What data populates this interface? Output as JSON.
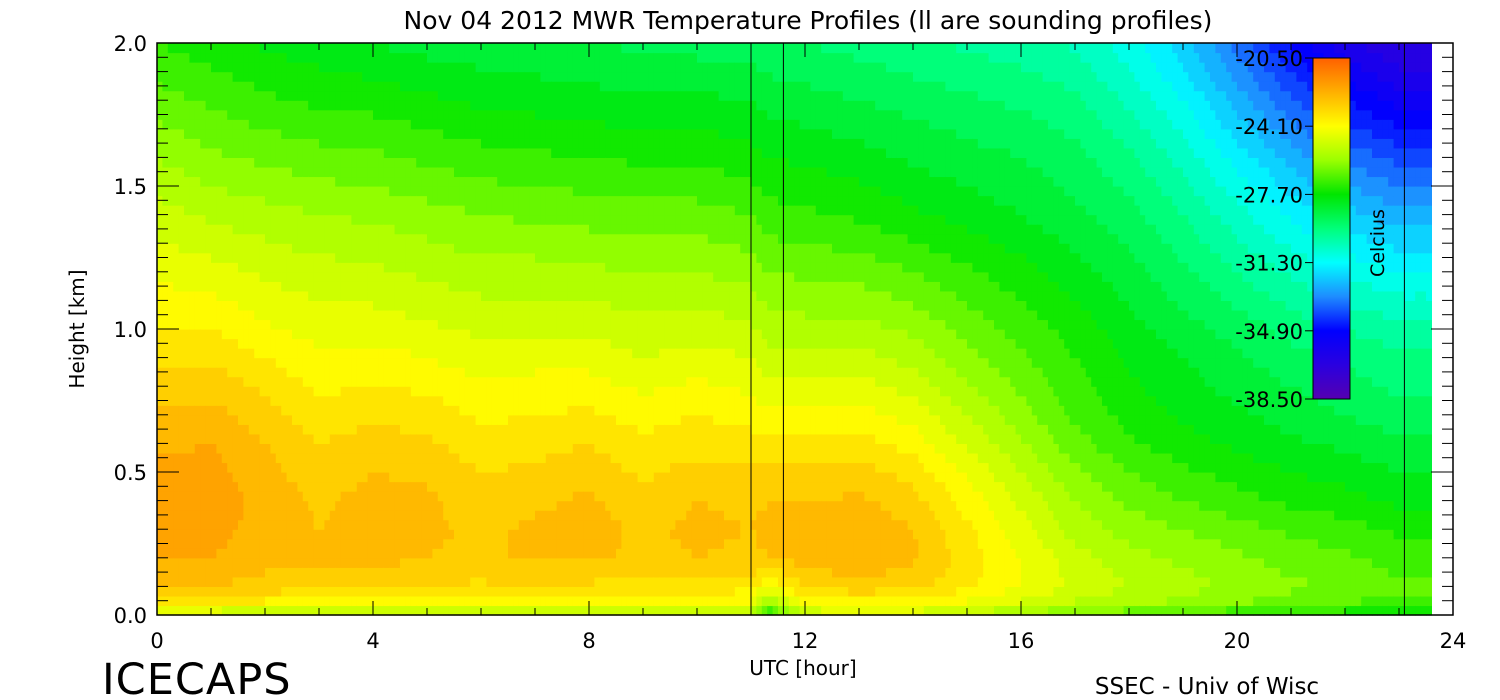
{
  "chart_data": {
    "type": "heatmap",
    "title": "Nov 04 2012 MWR Temperature Profiles (ll are sounding profiles)",
    "xlabel": "UTC [hour]",
    "ylabel": "Height [km]",
    "xlim": [
      0,
      24
    ],
    "ylim": [
      0.0,
      2.0
    ],
    "x_ticks": [
      0,
      4,
      8,
      12,
      16,
      20,
      24
    ],
    "y_ticks": [
      0.0,
      0.5,
      1.0,
      1.5,
      2.0
    ],
    "x_tick_labels": [
      "0",
      "4",
      "8",
      "12",
      "16",
      "20",
      "24"
    ],
    "y_tick_labels": [
      "0.0",
      "0.5",
      "1.0",
      "1.5",
      "2.0"
    ],
    "colorbar": {
      "label": "Celcius",
      "ticks": [
        -20.5,
        -24.1,
        -27.7,
        -31.3,
        -34.9,
        -38.5
      ],
      "tick_labels": [
        "-20.50",
        "-24.10",
        "-27.70",
        "-31.30",
        "-34.90",
        "-38.50"
      ],
      "range": [
        -38.5,
        -20.5
      ],
      "placement": "inside top-right"
    },
    "sounding_profile_hours": [
      11.0,
      11.6
    ],
    "data_end_hour": 23.1,
    "heights_km": [
      0.0,
      0.05,
      0.1,
      0.2,
      0.3,
      0.4,
      0.5,
      0.6,
      0.7,
      0.8,
      0.9,
      1.0,
      1.2,
      1.4,
      1.6,
      1.8,
      2.0
    ],
    "times_hour": [
      0,
      1,
      2,
      3,
      4,
      5,
      6,
      7,
      8,
      9,
      10,
      11,
      11.3,
      12,
      13,
      14,
      15,
      16,
      17,
      18,
      19,
      20,
      21,
      22,
      23,
      23.6
    ],
    "temperature_c": [
      [
        -25.0,
        -25.0,
        -25.2,
        -25.2,
        -25.1,
        -25.1,
        -25.3,
        -25.2,
        -25.3,
        -25.3,
        -25.3,
        -25.4,
        -27.3,
        -25.0,
        -24.8,
        -24.8,
        -25.2,
        -25.6,
        -26.1,
        -26.4,
        -26.6,
        -26.9,
        -27.1,
        -27.3,
        -27.6,
        -27.6
      ],
      [
        -23.3,
        -23.4,
        -23.5,
        -23.6,
        -23.6,
        -23.7,
        -23.8,
        -23.7,
        -23.8,
        -23.9,
        -23.9,
        -24.0,
        -25.6,
        -23.7,
        -23.5,
        -23.6,
        -24.0,
        -24.5,
        -25.0,
        -25.3,
        -25.6,
        -25.9,
        -26.2,
        -26.4,
        -26.7,
        -26.7
      ],
      [
        -22.4,
        -22.5,
        -22.7,
        -22.8,
        -22.9,
        -23.0,
        -23.1,
        -23.0,
        -23.1,
        -23.2,
        -23.2,
        -23.3,
        -24.0,
        -22.9,
        -22.7,
        -22.8,
        -23.4,
        -24.0,
        -24.6,
        -25.0,
        -25.3,
        -25.6,
        -25.9,
        -26.1,
        -26.4,
        -26.4
      ],
      [
        -22.0,
        -22.0,
        -22.3,
        -22.4,
        -22.3,
        -22.5,
        -22.6,
        -22.4,
        -22.4,
        -22.6,
        -22.5,
        -22.6,
        -22.5,
        -22.3,
        -22.1,
        -22.4,
        -23.2,
        -24.0,
        -24.8,
        -25.3,
        -25.6,
        -25.9,
        -26.2,
        -26.4,
        -26.7,
        -26.7
      ],
      [
        -21.9,
        -21.8,
        -22.2,
        -22.5,
        -22.2,
        -22.4,
        -22.6,
        -22.4,
        -22.3,
        -22.6,
        -22.4,
        -22.5,
        -22.4,
        -22.3,
        -22.1,
        -22.5,
        -23.4,
        -24.3,
        -25.2,
        -25.7,
        -26.0,
        -26.3,
        -26.6,
        -26.8,
        -27.1,
        -27.1
      ],
      [
        -21.9,
        -21.7,
        -22.2,
        -22.6,
        -22.3,
        -22.4,
        -22.8,
        -22.6,
        -22.4,
        -22.8,
        -22.5,
        -22.6,
        -22.5,
        -22.5,
        -22.4,
        -22.8,
        -23.7,
        -24.6,
        -25.5,
        -26.1,
        -26.5,
        -26.8,
        -27.1,
        -27.3,
        -27.6,
        -27.6
      ],
      [
        -21.9,
        -21.8,
        -22.3,
        -22.8,
        -22.5,
        -22.6,
        -23.0,
        -22.9,
        -22.7,
        -23.1,
        -22.8,
        -22.9,
        -22.9,
        -22.9,
        -22.8,
        -23.2,
        -24.1,
        -25.0,
        -25.9,
        -26.5,
        -26.9,
        -27.2,
        -27.5,
        -27.7,
        -28.0,
        -28.0
      ],
      [
        -22.1,
        -22.0,
        -22.5,
        -23.0,
        -22.8,
        -22.9,
        -23.3,
        -23.2,
        -23.0,
        -23.4,
        -23.2,
        -23.3,
        -23.4,
        -23.4,
        -23.3,
        -23.7,
        -24.6,
        -25.4,
        -26.3,
        -26.9,
        -27.3,
        -27.6,
        -27.9,
        -28.1,
        -28.4,
        -28.4
      ],
      [
        -22.4,
        -22.3,
        -22.8,
        -23.3,
        -23.1,
        -23.2,
        -23.6,
        -23.5,
        -23.4,
        -23.7,
        -23.5,
        -23.7,
        -23.9,
        -23.9,
        -23.8,
        -24.2,
        -25.0,
        -25.8,
        -26.6,
        -27.2,
        -27.6,
        -27.9,
        -28.2,
        -28.5,
        -28.8,
        -28.8
      ],
      [
        -22.7,
        -22.7,
        -23.1,
        -23.6,
        -23.5,
        -23.6,
        -23.9,
        -23.8,
        -23.8,
        -24.1,
        -23.9,
        -24.1,
        -24.4,
        -24.4,
        -24.3,
        -24.7,
        -25.4,
        -26.1,
        -26.8,
        -27.4,
        -27.8,
        -28.2,
        -28.5,
        -28.8,
        -29.1,
        -29.1
      ],
      [
        -23.1,
        -23.1,
        -23.5,
        -23.9,
        -23.8,
        -24.0,
        -24.3,
        -24.2,
        -24.2,
        -24.5,
        -24.3,
        -24.5,
        -24.8,
        -24.9,
        -24.8,
        -25.2,
        -25.8,
        -26.4,
        -27.0,
        -27.6,
        -28.0,
        -28.4,
        -28.8,
        -29.1,
        -29.4,
        -29.4
      ],
      [
        -23.5,
        -23.5,
        -23.9,
        -24.2,
        -24.2,
        -24.4,
        -24.6,
        -24.6,
        -24.6,
        -24.8,
        -24.7,
        -24.9,
        -25.2,
        -25.3,
        -25.3,
        -25.6,
        -26.2,
        -26.7,
        -27.2,
        -27.8,
        -28.3,
        -28.7,
        -29.2,
        -29.5,
        -29.8,
        -29.8
      ],
      [
        -24.1,
        -24.3,
        -24.6,
        -24.8,
        -24.9,
        -25.1,
        -25.3,
        -25.3,
        -25.4,
        -25.5,
        -25.5,
        -25.7,
        -26.0,
        -26.1,
        -26.2,
        -26.5,
        -26.9,
        -27.3,
        -27.8,
        -28.3,
        -28.9,
        -29.5,
        -30.1,
        -30.6,
        -31.0,
        -31.0
      ],
      [
        -24.8,
        -25.1,
        -25.3,
        -25.5,
        -25.6,
        -25.8,
        -26.0,
        -26.1,
        -26.2,
        -26.3,
        -26.3,
        -26.5,
        -26.8,
        -26.9,
        -27.1,
        -27.4,
        -27.7,
        -28.0,
        -28.4,
        -28.8,
        -29.5,
        -30.3,
        -31.1,
        -31.8,
        -32.3,
        -32.3
      ],
      [
        -25.5,
        -25.9,
        -26.1,
        -26.3,
        -26.4,
        -26.6,
        -26.8,
        -26.9,
        -27.0,
        -27.1,
        -27.1,
        -27.3,
        -27.5,
        -27.6,
        -27.8,
        -28.1,
        -28.3,
        -28.5,
        -28.8,
        -29.4,
        -30.2,
        -31.2,
        -32.2,
        -33.1,
        -33.7,
        -33.7
      ],
      [
        -26.3,
        -26.6,
        -26.9,
        -27.1,
        -27.2,
        -27.4,
        -27.6,
        -27.7,
        -27.8,
        -27.9,
        -27.9,
        -28.0,
        -28.2,
        -28.3,
        -28.5,
        -28.7,
        -28.9,
        -29.1,
        -29.4,
        -30.1,
        -31.0,
        -32.2,
        -33.4,
        -34.5,
        -35.2,
        -35.2
      ],
      [
        -27.0,
        -27.3,
        -27.6,
        -27.8,
        -28.0,
        -28.2,
        -28.3,
        -28.4,
        -28.5,
        -28.6,
        -28.7,
        -28.7,
        -28.9,
        -29.0,
        -29.2,
        -29.4,
        -29.6,
        -29.8,
        -30.1,
        -30.8,
        -31.8,
        -33.2,
        -34.6,
        -35.8,
        -36.6,
        -36.6
      ]
    ]
  },
  "footer": {
    "left_logo": "ICECAPS",
    "right_credit": "SSEC - Univ of Wisc"
  },
  "colors": {
    "ramp": [
      "#5500b0",
      "#2a00e0",
      "#0000ff",
      "#1e8cff",
      "#00ffff",
      "#00ff7a",
      "#00e600",
      "#9bff00",
      "#ffff00",
      "#ffb000",
      "#ff6000"
    ]
  }
}
